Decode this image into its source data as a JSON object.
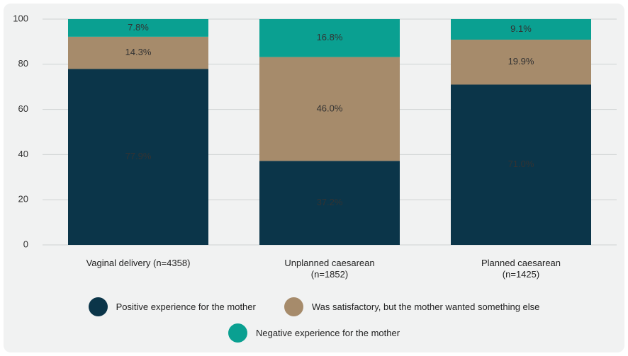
{
  "chart_data": {
    "type": "stacked_bar",
    "categories": [
      "Vaginal delivery (n=4358)",
      "Unplanned caesarean\n(n=1852)",
      "Planned caesarean\n(n=1425)"
    ],
    "series": [
      {
        "name": "Positive experience for the mother",
        "color": "#0b3549",
        "values": [
          77.9,
          37.2,
          71.0
        ],
        "value_labels": [
          "77.9%",
          "37.2%",
          "71.0%"
        ]
      },
      {
        "name": "Was satisfactory, but the mother wanted something else",
        "color": "#a68b6b",
        "values": [
          14.3,
          46.0,
          19.9
        ],
        "value_labels": [
          "14.3%",
          "46.0%",
          "19.9%"
        ]
      },
      {
        "name": "Negative experience for the mother",
        "color": "#0aa091",
        "values": [
          7.8,
          16.8,
          9.1
        ],
        "value_labels": [
          "7.8%",
          "16.8%",
          "9.1%"
        ]
      }
    ],
    "ylim": [
      0,
      100
    ],
    "yticks": [
      0,
      20,
      40,
      60,
      80,
      100
    ],
    "grid": true
  }
}
